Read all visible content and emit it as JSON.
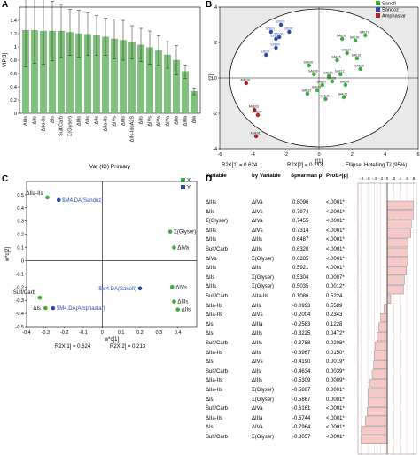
{
  "figure": {
    "panels": [
      "A",
      "B",
      "C",
      "D"
    ]
  },
  "chart_data": [
    {
      "panel": "A",
      "type": "bar",
      "ylabel": "VIP[3]",
      "xlabel": "Var (ID) Primary",
      "ylim": [
        0,
        1.6
      ],
      "yticks": [
        "0",
        "0.2",
        "0.4",
        "0.6",
        "0.8",
        "1",
        "1.2",
        "1.4"
      ],
      "categories": [
        "ΔIIIs",
        "ΔIIs",
        "ΔIIa-IIs",
        "ΔIs",
        "Sulf/Carb",
        "Σ(Glyser)",
        "ΔIIIs",
        "ΔIIs",
        "ΔIIs",
        "ΔIIa-IIs",
        "ΔIVs",
        "ΔIIIs",
        "ΔIIs-IdoA2S",
        "ΔIIs",
        "ΔIVs",
        "ΔIVa",
        "ΔIVa",
        "ΔIIa",
        "ΔIIIa",
        "ΔIa"
      ],
      "values": [
        1.25,
        1.25,
        1.24,
        1.24,
        1.24,
        1.22,
        1.2,
        1.19,
        1.17,
        1.15,
        1.12,
        1.1,
        1.07,
        1.03,
        0.99,
        0.95,
        0.88,
        0.8,
        0.63,
        0.33
      ],
      "errors": [
        0.55,
        0.5,
        0.5,
        0.45,
        0.4,
        0.35,
        0.35,
        0.32,
        0.3,
        0.28,
        0.3,
        0.3,
        0.25,
        0.25,
        0.25,
        0.22,
        0.2,
        0.22,
        0.1,
        0.05
      ],
      "bar_color": "#7cc379"
    },
    {
      "panel": "B",
      "type": "scatter",
      "xlabel": "t[1]",
      "ylabel": "t[2]",
      "xlim": [
        -6,
        6
      ],
      "ylim": [
        -4,
        4
      ],
      "xticks": [
        "-6",
        "-4",
        "-2",
        "0",
        "2",
        "4",
        "6"
      ],
      "yticks": [
        "-4",
        "-2",
        "0",
        "2",
        "4"
      ],
      "footer": [
        "R2X[1] = 0.624",
        "R2X[2] = 0.213",
        "Ellipse: Hotelling T² (95%)"
      ],
      "legend": [
        {
          "name": "Sanofi",
          "color": "#3aae3a"
        },
        {
          "name": "Sandoz",
          "color": "#2a4aa8"
        },
        {
          "name": "Amphastar",
          "color": "#b32222"
        }
      ],
      "series": [
        {
          "name": "Sanofi",
          "points": [
            {
              "label": "SAE14",
              "x": 1.7,
              "y": 1.4
            },
            {
              "label": "SAE16",
              "x": 2.3,
              "y": 1.1
            },
            {
              "label": "SAE03",
              "x": 1.4,
              "y": 2.2
            },
            {
              "label": "SAE20",
              "x": 2.2,
              "y": 2.1
            },
            {
              "label": "SAE17",
              "x": 2.8,
              "y": 2.4
            },
            {
              "label": "SAE18",
              "x": 2.5,
              "y": 0.5
            },
            {
              "label": "SAE15",
              "x": 1.1,
              "y": 1.0
            },
            {
              "label": "SAE08",
              "x": -0.6,
              "y": 0.7
            },
            {
              "label": "SAE09",
              "x": -0.3,
              "y": 0.2
            },
            {
              "label": "SAE10",
              "x": 0.6,
              "y": 0.1
            },
            {
              "label": "SAE12",
              "x": 1.3,
              "y": 0.2
            },
            {
              "label": "SAE06",
              "x": 0.8,
              "y": -0.2
            },
            {
              "label": "SAE02",
              "x": 0.2,
              "y": -0.4
            },
            {
              "label": "SAE01",
              "x": -0.1,
              "y": -0.7
            },
            {
              "label": "SAE05",
              "x": 1.6,
              "y": -0.4
            },
            {
              "label": "SAE21",
              "x": 1.5,
              "y": -1.1
            },
            {
              "label": "SAE11",
              "x": 0.4,
              "y": -1.2
            },
            {
              "label": "SAE22",
              "x": -0.7,
              "y": -0.9
            }
          ]
        },
        {
          "name": "Sandoz",
          "points": [
            {
              "label": "SZE03",
              "x": -2.3,
              "y": 3.0
            },
            {
              "label": "SZE02",
              "x": -1.8,
              "y": 2.6
            },
            {
              "label": "SZE01",
              "x": -2.9,
              "y": 2.6
            },
            {
              "label": "SZE05",
              "x": -2.6,
              "y": 2.2
            },
            {
              "label": "SZE06",
              "x": -2.4,
              "y": 2.3
            },
            {
              "label": "SZE04",
              "x": -2.6,
              "y": 1.7
            },
            {
              "label": "SZE07",
              "x": -3.2,
              "y": 1.3
            }
          ]
        },
        {
          "name": "Amphastar",
          "points": [
            {
              "label": "AME02",
              "x": -4.4,
              "y": -0.3
            },
            {
              "label": "AME03",
              "x": -3.9,
              "y": -1.8
            },
            {
              "label": "AME04",
              "x": -3.7,
              "y": -2.1
            },
            {
              "label": "AME01",
              "x": -3.8,
              "y": -3.3
            }
          ]
        }
      ]
    },
    {
      "panel": "C",
      "type": "scatter",
      "xlabel": "w*c[1]",
      "ylabel": "w*c[2]",
      "xlim": [
        -0.4,
        0.5
      ],
      "ylim": [
        -0.5,
        0.6
      ],
      "xticks": [
        "-0.4",
        "-0.3",
        "-0.2",
        "-0.1",
        "0",
        "0.1",
        "0.2",
        "0.3",
        "0.4"
      ],
      "yticks": [
        "-0.5",
        "-0.4",
        "-0.3",
        "-0.2",
        "-0.1",
        "0",
        "0.1",
        "0.2",
        "0.3",
        "0.4",
        "0.5"
      ],
      "footer": [
        "R2X[1] = 0.624",
        "R2X[2] = 0.213"
      ],
      "legend": [
        {
          "name": "X",
          "color": "#3aae3a"
        },
        {
          "name": "Y",
          "color": "#2a4aa8"
        }
      ],
      "series": [
        {
          "name": "X",
          "points": [
            {
              "label": "ΔIIa-IIs",
              "x": -0.29,
              "y": 0.48
            },
            {
              "label": "Σ(Glyser)",
              "x": 0.36,
              "y": 0.22
            },
            {
              "label": "ΔIVa",
              "x": 0.38,
              "y": 0.1
            },
            {
              "label": "ΔIVs",
              "x": 0.37,
              "y": -0.2
            },
            {
              "label": "ΔIIIs",
              "x": 0.38,
              "y": -0.31
            },
            {
              "label": "ΔIs",
              "x": -0.3,
              "y": -0.36
            },
            {
              "label": "Sulf/Carb",
              "x": -0.33,
              "y": -0.28
            },
            {
              "label": "ΔIIs",
              "x": 0.4,
              "y": -0.37
            }
          ]
        },
        {
          "name": "Y",
          "points": [
            {
              "label": "$M4.DA(Sandoz)",
              "x": -0.23,
              "y": 0.46
            },
            {
              "label": "$M4.DA(Sanofi)",
              "x": 0.2,
              "y": -0.21
            },
            {
              "label": "$M4.DA(Amphastar)",
              "x": -0.26,
              "y": -0.36
            }
          ]
        }
      ]
    }
  ],
  "table": {
    "panel": "D",
    "headers": {
      "variable": "Variable",
      "by": "by Variable",
      "rho": "Spearman ρ",
      "prob": "Prob>|ρ|",
      "scale": [
        "-.8",
        "-.6",
        "-.4",
        "-.2",
        "0",
        ".2",
        ".4",
        ".6",
        ".8"
      ]
    },
    "rows": [
      {
        "variable": "ΔIIIs",
        "by": "ΔIVa",
        "rho": "0.8096",
        "prob": "<.0001*",
        "r": 0.8096
      },
      {
        "variable": "ΔIIs",
        "by": "ΔIVs",
        "rho": "0.7974",
        "prob": "<.0001*",
        "r": 0.7974
      },
      {
        "variable": "Σ(Glyser)",
        "by": "ΔIVa",
        "rho": "0.7455",
        "prob": "<.0001*",
        "r": 0.7455
      },
      {
        "variable": "ΔIIIs",
        "by": "ΔIVs",
        "rho": "0.7314",
        "prob": "<.0001*",
        "r": 0.7314
      },
      {
        "variable": "ΔIIIs",
        "by": "ΔIIIs",
        "rho": "0.6487",
        "prob": "<.0001*",
        "r": 0.6487
      },
      {
        "variable": "Sulf/Carb",
        "by": "ΔIIIs",
        "rho": "0.6320",
        "prob": "<.0001*",
        "r": 0.632
      },
      {
        "variable": "ΔIVs",
        "by": "Σ(Glyser)",
        "rho": "0.6285",
        "prob": "<.0001*",
        "r": 0.6285
      },
      {
        "variable": "ΔIIIs",
        "by": "ΔIIs",
        "rho": "0.5921",
        "prob": "<.0001*",
        "r": 0.5921
      },
      {
        "variable": "ΔIIs",
        "by": "Σ(Glyser)",
        "rho": "0.5304",
        "prob": "0.0007*",
        "r": 0.5304
      },
      {
        "variable": "ΔIIIs",
        "by": "Σ(Glyser)",
        "rho": "0.5035",
        "prob": "0.0012*",
        "r": 0.5035
      },
      {
        "variable": "Sulf/Carb",
        "by": "ΔIIa-IIs",
        "rho": "0.1086",
        "prob": "0.5224",
        "r": 0.1086
      },
      {
        "variable": "ΔIIa-IIs",
        "by": "ΔIIs",
        "rho": "-0.0993",
        "prob": "0.5589",
        "r": -0.0993
      },
      {
        "variable": "ΔIIa-IIs",
        "by": "ΔIVs",
        "rho": "-0.2004",
        "prob": "0.2343",
        "r": -0.2004
      },
      {
        "variable": "ΔIs",
        "by": "ΔIIIa",
        "rho": "-0.2583",
        "prob": "0.1228",
        "r": -0.2583
      },
      {
        "variable": "ΔIs",
        "by": "ΔIIIs",
        "rho": "-0.3225",
        "prob": "0.0472*",
        "r": -0.3225
      },
      {
        "variable": "Sulf/Carb",
        "by": "ΔIIIs",
        "rho": "-0.3788",
        "prob": "0.0208*",
        "r": -0.3788
      },
      {
        "variable": "ΔIIa-IIs",
        "by": "ΔIIs",
        "rho": "-0.3967",
        "prob": "0.0150*",
        "r": -0.3967
      },
      {
        "variable": "ΔIs",
        "by": "ΔIVs",
        "rho": "-0.4190",
        "prob": "0.0019*",
        "r": -0.419
      },
      {
        "variable": "Sulf/Carb",
        "by": "ΔIIs",
        "rho": "-0.4634",
        "prob": "0.0039*",
        "r": -0.4634
      },
      {
        "variable": "ΔIIa-IIs",
        "by": "ΔIIIs",
        "rho": "-0.5309",
        "prob": "0.0009*",
        "r": -0.5309
      },
      {
        "variable": "ΔIIa-IIs",
        "by": "Σ(Glyser)",
        "rho": "-0.5867",
        "prob": "0.0001*",
        "r": -0.5867
      },
      {
        "variable": "ΔIs",
        "by": "Σ(Glyser)",
        "rho": "-0.5867",
        "prob": "0.0001*",
        "r": -0.5867
      },
      {
        "variable": "Sulf/Carb",
        "by": "ΔIVa",
        "rho": "-0.6161",
        "prob": "<.0001*",
        "r": -0.6161
      },
      {
        "variable": "ΔIIa-IIs",
        "by": "ΔIIIa",
        "rho": "-0.6744",
        "prob": "<.0001*",
        "r": -0.6744
      },
      {
        "variable": "ΔIs",
        "by": "ΔIVa",
        "rho": "-0.7964",
        "prob": "<.0001*",
        "r": -0.7964
      },
      {
        "variable": "Sulf/Carb",
        "by": "Σ(Glyser)",
        "rho": "-0.8057",
        "prob": "<.0001*",
        "r": -0.8057
      }
    ],
    "bar_color": "#f6c9c9"
  }
}
